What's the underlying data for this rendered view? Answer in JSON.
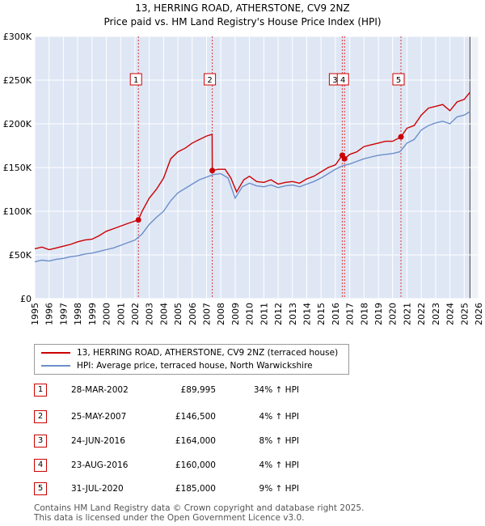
{
  "title": "13, HERRING ROAD, ATHERSTONE, CV9 2NZ",
  "subtitle": "Price paid vs. HM Land Registry's House Price Index (HPI)",
  "colors": {
    "price": "#cc0000",
    "hpi": "#6b8fc9",
    "band": "#dfe7f5",
    "grid": "#d0d0d0"
  },
  "chart_data": {
    "type": "line",
    "x_range": [
      1995,
      2026
    ],
    "ylim": [
      0,
      300000
    ],
    "y_ticks": [
      {
        "value": 0,
        "label": "£0"
      },
      {
        "value": 50000,
        "label": "£50K"
      },
      {
        "value": 100000,
        "label": "£100K"
      },
      {
        "value": 150000,
        "label": "£150K"
      },
      {
        "value": 200000,
        "label": "£200K"
      },
      {
        "value": 250000,
        "label": "£250K"
      },
      {
        "value": 300000,
        "label": "£300K"
      }
    ],
    "x_ticks": [
      "1995",
      "1996",
      "1997",
      "1998",
      "1999",
      "2000",
      "2001",
      "2002",
      "2003",
      "2004",
      "2005",
      "2006",
      "2007",
      "2008",
      "2009",
      "2010",
      "2011",
      "2012",
      "2013",
      "2014",
      "2015",
      "2016",
      "2017",
      "2018",
      "2019",
      "2020",
      "2021",
      "2022",
      "2023",
      "2024",
      "2025",
      "2026"
    ],
    "series": [
      {
        "name": "13, HERRING ROAD, ATHERSTONE, CV9 2NZ (terraced house)",
        "points": [
          [
            1995,
            57000
          ],
          [
            1995.5,
            59000
          ],
          [
            1996,
            56000
          ],
          [
            1996.5,
            58000
          ],
          [
            1997,
            60000
          ],
          [
            1997.5,
            62000
          ],
          [
            1998,
            65000
          ],
          [
            1998.5,
            67000
          ],
          [
            1999,
            68000
          ],
          [
            1999.5,
            72000
          ],
          [
            2000,
            77000
          ],
          [
            2000.5,
            80000
          ],
          [
            2001,
            83000
          ],
          [
            2001.5,
            86000
          ],
          [
            2002.24,
            89995
          ],
          [
            2002.5,
            100000
          ],
          [
            2003,
            115000
          ],
          [
            2003.5,
            125000
          ],
          [
            2004,
            138000
          ],
          [
            2004.5,
            160000
          ],
          [
            2005,
            168000
          ],
          [
            2005.5,
            172000
          ],
          [
            2006,
            178000
          ],
          [
            2006.5,
            182000
          ],
          [
            2007.0,
            186000
          ],
          [
            2007.39,
            188000
          ],
          [
            2007.4,
            146500
          ],
          [
            2007.8,
            148000
          ],
          [
            2008.3,
            148000
          ],
          [
            2008.7,
            138000
          ],
          [
            2009.1,
            122000
          ],
          [
            2009.6,
            136000
          ],
          [
            2010,
            140000
          ],
          [
            2010.5,
            134000
          ],
          [
            2011,
            133000
          ],
          [
            2011.5,
            136000
          ],
          [
            2012,
            131000
          ],
          [
            2012.5,
            133000
          ],
          [
            2013,
            134000
          ],
          [
            2013.5,
            132000
          ],
          [
            2014,
            137000
          ],
          [
            2014.5,
            140000
          ],
          [
            2015,
            145000
          ],
          [
            2015.5,
            150000
          ],
          [
            2016,
            153000
          ],
          [
            2016.48,
            164000
          ],
          [
            2016.64,
            160000
          ],
          [
            2017,
            165000
          ],
          [
            2017.5,
            168000
          ],
          [
            2018,
            174000
          ],
          [
            2018.5,
            176000
          ],
          [
            2019,
            178000
          ],
          [
            2019.5,
            180000
          ],
          [
            2020.0,
            180000
          ],
          [
            2020.58,
            185000
          ],
          [
            2021,
            195000
          ],
          [
            2021.5,
            198000
          ],
          [
            2022,
            210000
          ],
          [
            2022.5,
            218000
          ],
          [
            2023,
            220000
          ],
          [
            2023.5,
            222000
          ],
          [
            2024,
            215000
          ],
          [
            2024.5,
            225000
          ],
          [
            2025,
            228000
          ],
          [
            2025.4,
            236000
          ]
        ]
      },
      {
        "name": "HPI: Average price, terraced house, North Warwickshire",
        "points": [
          [
            1995,
            42000
          ],
          [
            1995.5,
            44000
          ],
          [
            1996,
            43000
          ],
          [
            1996.5,
            45000
          ],
          [
            1997,
            46000
          ],
          [
            1997.5,
            48000
          ],
          [
            1998,
            49000
          ],
          [
            1998.5,
            51000
          ],
          [
            1999,
            52000
          ],
          [
            1999.5,
            54000
          ],
          [
            2000,
            56000
          ],
          [
            2000.5,
            58000
          ],
          [
            2001,
            61000
          ],
          [
            2001.5,
            64000
          ],
          [
            2002,
            67000
          ],
          [
            2002.5,
            74000
          ],
          [
            2003,
            85000
          ],
          [
            2003.5,
            93000
          ],
          [
            2004,
            100000
          ],
          [
            2004.5,
            112000
          ],
          [
            2005,
            121000
          ],
          [
            2005.5,
            126000
          ],
          [
            2006,
            131000
          ],
          [
            2006.5,
            136000
          ],
          [
            2007,
            139000
          ],
          [
            2007.5,
            142000
          ],
          [
            2008,
            143000
          ],
          [
            2008.5,
            138000
          ],
          [
            2009,
            115000
          ],
          [
            2009.5,
            128000
          ],
          [
            2010,
            132000
          ],
          [
            2010.5,
            129000
          ],
          [
            2011,
            128000
          ],
          [
            2011.5,
            130000
          ],
          [
            2012,
            127000
          ],
          [
            2012.5,
            129000
          ],
          [
            2013,
            130000
          ],
          [
            2013.5,
            128000
          ],
          [
            2014,
            131000
          ],
          [
            2014.5,
            134000
          ],
          [
            2015,
            138000
          ],
          [
            2015.5,
            143000
          ],
          [
            2016,
            148000
          ],
          [
            2016.5,
            152000
          ],
          [
            2017,
            154000
          ],
          [
            2017.5,
            157000
          ],
          [
            2018,
            160000
          ],
          [
            2018.5,
            162000
          ],
          [
            2019,
            164000
          ],
          [
            2019.5,
            165000
          ],
          [
            2020,
            166000
          ],
          [
            2020.5,
            168000
          ],
          [
            2021,
            178000
          ],
          [
            2021.5,
            182000
          ],
          [
            2022,
            193000
          ],
          [
            2022.5,
            198000
          ],
          [
            2023,
            201000
          ],
          [
            2023.5,
            203000
          ],
          [
            2024,
            200000
          ],
          [
            2024.5,
            208000
          ],
          [
            2025,
            210000
          ],
          [
            2025.4,
            214000
          ]
        ]
      }
    ],
    "sales": [
      {
        "n": "1",
        "x": 2002.24,
        "value": 89995
      },
      {
        "n": "2",
        "x": 2007.4,
        "value": 146500
      },
      {
        "n": "3",
        "x": 2016.48,
        "value": 164000
      },
      {
        "n": "4",
        "x": 2016.64,
        "value": 160000
      },
      {
        "n": "5",
        "x": 2020.58,
        "value": 185000
      }
    ],
    "shaded_from": 2025.4
  },
  "legend": {
    "price_label": "13, HERRING ROAD, ATHERSTONE, CV9 2NZ (terraced house)",
    "hpi_label": "HPI: Average price, terraced house, North Warwickshire"
  },
  "table": [
    {
      "n": "1",
      "date": "28-MAR-2002",
      "price": "£89,995",
      "hpi": "34% ↑ HPI"
    },
    {
      "n": "2",
      "date": "25-MAY-2007",
      "price": "£146,500",
      "hpi": "4% ↑ HPI"
    },
    {
      "n": "3",
      "date": "24-JUN-2016",
      "price": "£164,000",
      "hpi": "8% ↑ HPI"
    },
    {
      "n": "4",
      "date": "23-AUG-2016",
      "price": "£160,000",
      "hpi": "4% ↑ HPI"
    },
    {
      "n": "5",
      "date": "31-JUL-2020",
      "price": "£185,000",
      "hpi": "9% ↑ HPI"
    }
  ],
  "footer": {
    "line1": "Contains HM Land Registry data © Crown copyright and database right 2025.",
    "line2": "This data is licensed under the Open Government Licence v3.0."
  }
}
